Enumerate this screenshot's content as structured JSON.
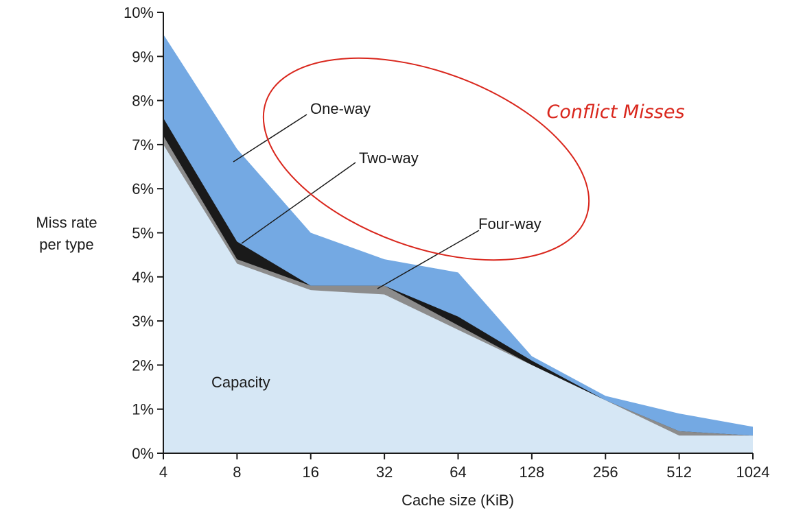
{
  "chart_data": {
    "type": "area",
    "title": "",
    "xlabel": "Cache size (KiB)",
    "ylabel_lines": [
      "Miss rate",
      "per type"
    ],
    "categories": [
      "4",
      "8",
      "16",
      "32",
      "64",
      "128",
      "256",
      "512",
      "1024"
    ],
    "y_ticks": [
      "0%",
      "1%",
      "2%",
      "3%",
      "4%",
      "5%",
      "6%",
      "7%",
      "8%",
      "9%",
      "10%"
    ],
    "ylim": [
      0,
      10
    ],
    "grid": false,
    "series": [
      {
        "name": "Capacity",
        "values": [
          7.0,
          4.3,
          3.7,
          3.6,
          2.8,
          2.0,
          1.2,
          0.4,
          0.4
        ],
        "color": "#d6e7f5"
      },
      {
        "name": "Four-way",
        "values": [
          7.2,
          4.4,
          3.8,
          3.8,
          2.9,
          2.0,
          1.2,
          0.5,
          0.4
        ],
        "color": "#8c8c8c"
      },
      {
        "name": "Two-way",
        "values": [
          7.6,
          4.8,
          3.8,
          3.8,
          3.1,
          2.1,
          1.2,
          0.5,
          0.4
        ],
        "color": "#1a1a1a"
      },
      {
        "name": "One-way",
        "values": [
          9.5,
          6.9,
          5.0,
          4.4,
          4.1,
          2.2,
          1.3,
          0.9,
          0.6
        ],
        "color": "#74a9e3"
      }
    ],
    "annotations": {
      "capacity_label": "Capacity",
      "one_way": "One-way",
      "two_way": "Two-way",
      "four_way": "Four-way",
      "conflict_misses": "Conflict Misses"
    },
    "colors": {
      "axis": "#1a1a1a",
      "conflict_text": "#d9261c",
      "conflict_ellipse": "#d9261c",
      "leader_line": "#1a1a1a"
    }
  }
}
